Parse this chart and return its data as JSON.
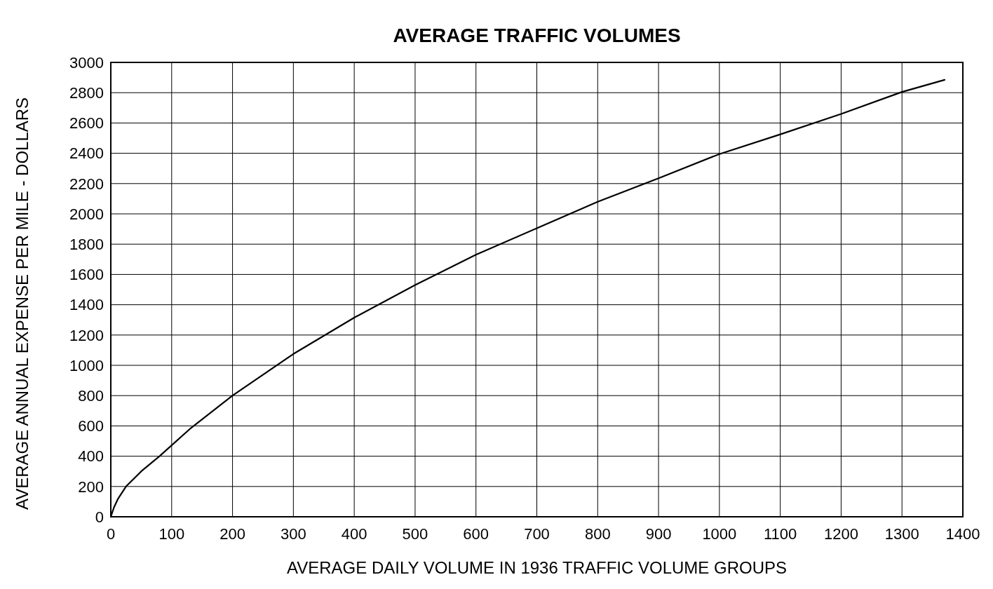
{
  "chart_data": {
    "type": "line",
    "title": "AVERAGE TRAFFIC VOLUMES",
    "xlabel": "AVERAGE DAILY VOLUME IN 1936 TRAFFIC VOLUME GROUPS",
    "ylabel": "AVERAGE ANNUAL EXPENSE PER MILE - DOLLARS",
    "series": [
      {
        "color": "#000000",
        "x": [
          0,
          5,
          12,
          25,
          50,
          80,
          130,
          200,
          300,
          400,
          500,
          600,
          700,
          800,
          900,
          1000,
          1100,
          1200,
          1300,
          1370
        ],
        "values": [
          0,
          60,
          120,
          200,
          300,
          400,
          580,
          800,
          1075,
          1315,
          1530,
          1730,
          1905,
          2080,
          2235,
          2395,
          2525,
          2660,
          2805,
          2885
        ]
      }
    ],
    "xlim": [
      0,
      1400
    ],
    "xticks": [
      0,
      100,
      200,
      300,
      400,
      500,
      600,
      700,
      800,
      900,
      1000,
      1100,
      1200,
      1300,
      1400
    ],
    "ylim": [
      0,
      3000
    ],
    "yticks": [
      0,
      200,
      400,
      600,
      800,
      1000,
      1200,
      1400,
      1600,
      1800,
      2000,
      2200,
      2400,
      2600,
      2800,
      3000
    ],
    "grid": true,
    "marker": "none",
    "line_style": "solid"
  }
}
